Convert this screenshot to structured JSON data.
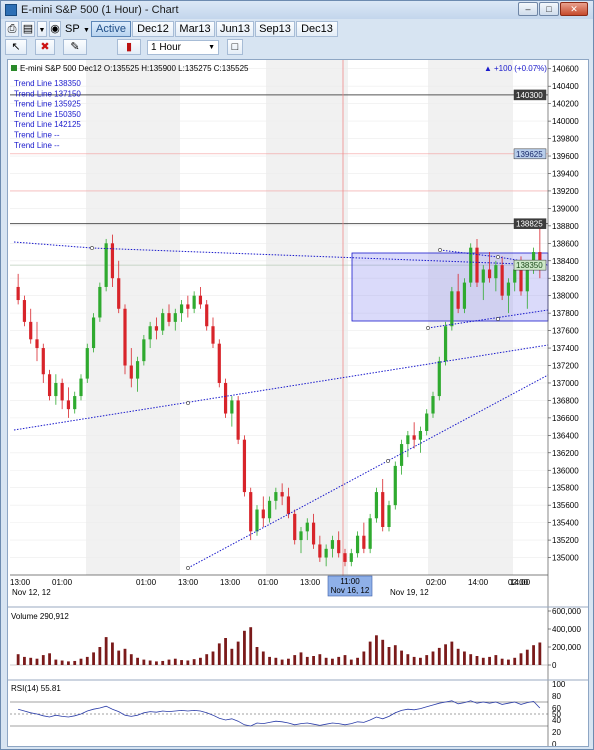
{
  "window": {
    "title": "E-mini S&P 500 (1 Hour) - Chart",
    "controls": [
      "–",
      "□",
      "✕"
    ]
  },
  "toolbar": {
    "symbol": "SP",
    "tabs": [
      "Active",
      "Dec12",
      "Mar13",
      "Jun13",
      "Sep13",
      "Dec13"
    ],
    "active_tab": "Active",
    "interval": "1 Hour"
  },
  "price_panel": {
    "header": "E-mini S&P 500 Dec12 O:135525 H:135900 L:135275 C:135525",
    "change": "+100 (+0.07%)",
    "legend": [
      "Trend Line 138350",
      "Trend Line 137150",
      "Trend Line 135925",
      "Trend Line 150350",
      "Trend Line 142125",
      "Trend Line --",
      "Trend Line --"
    ],
    "y_ticks": [
      "140600",
      "140400",
      "140200",
      "140000",
      "139800",
      "139600",
      "139400",
      "139200",
      "139000",
      "138800",
      "138600",
      "138400",
      "138200",
      "138000",
      "137800",
      "137600",
      "137400",
      "137200",
      "137000",
      "136800",
      "136600",
      "136400",
      "136200",
      "136000",
      "135800",
      "135600",
      "135400",
      "135200",
      "135000"
    ],
    "y_min": 134800,
    "y_max": 140700,
    "markers": [
      {
        "label": "140300",
        "value": 140300,
        "style": "dark"
      },
      {
        "label": "139625",
        "value": 139625,
        "style": "blue"
      },
      {
        "label": "138825",
        "value": 138825,
        "style": "dark"
      },
      {
        "label": "138350",
        "value": 138350,
        "style": "green"
      }
    ],
    "x_labels": [
      "13:00",
      "01:00",
      "13:00",
      "01:00",
      "13:00",
      "01:00",
      "13:00",
      "01:00",
      "11:00",
      "02:00",
      "14:00",
      "02:00",
      "14:00"
    ],
    "date_labels": [
      "Nov 12, 12",
      "Nov 19, 12"
    ],
    "crosshair": {
      "time": "11:00",
      "date": "Nov 16, 12"
    }
  },
  "volume_panel": {
    "label": "Volume 290,912",
    "y_ticks": [
      "600,000",
      "400,000",
      "200,000",
      "0"
    ],
    "y_max": 600000
  },
  "rsi_panel": {
    "label": "RSI(14)  55.81",
    "y_ticks": [
      "100",
      "80",
      "60",
      "50",
      "40",
      "20",
      "0"
    ]
  },
  "colors": {
    "up": "#2faa2f",
    "down": "#d8242a",
    "trend": "#1a1acc",
    "volume": "#7a1a1a",
    "rsi": "#2a3ca8"
  },
  "chart_data": {
    "type": "candlestick",
    "title": "E-mini S&P 500 Dec12",
    "ohlc": [
      [
        138100,
        138250,
        137900,
        137950
      ],
      [
        137950,
        138000,
        137650,
        137700
      ],
      [
        137700,
        137850,
        137450,
        137500
      ],
      [
        137500,
        137700,
        137250,
        137400
      ],
      [
        137400,
        137450,
        137000,
        137100
      ],
      [
        137100,
        137150,
        136800,
        136850
      ],
      [
        136850,
        137100,
        136750,
        137000
      ],
      [
        137000,
        137050,
        136700,
        136800
      ],
      [
        136800,
        136950,
        136600,
        136700
      ],
      [
        136700,
        136900,
        136650,
        136850
      ],
      [
        136850,
        137100,
        136800,
        137050
      ],
      [
        137050,
        137450,
        137000,
        137400
      ],
      [
        137400,
        137800,
        137350,
        137750
      ],
      [
        137750,
        138150,
        137700,
        138100
      ],
      [
        138100,
        138650,
        138050,
        138600
      ],
      [
        138600,
        138700,
        138100,
        138200
      ],
      [
        138200,
        138400,
        137800,
        137850
      ],
      [
        137850,
        137900,
        137100,
        137200
      ],
      [
        137200,
        137400,
        136950,
        137050
      ],
      [
        137050,
        137300,
        136900,
        137250
      ],
      [
        137250,
        137550,
        137200,
        137500
      ],
      [
        137500,
        137700,
        137400,
        137650
      ],
      [
        137650,
        137750,
        137500,
        137600
      ],
      [
        137600,
        137850,
        137550,
        137800
      ],
      [
        137800,
        137900,
        137650,
        137700
      ],
      [
        137700,
        137850,
        137600,
        137800
      ],
      [
        137800,
        137950,
        137700,
        137900
      ],
      [
        137900,
        138000,
        137750,
        137850
      ],
      [
        137850,
        138050,
        137800,
        138000
      ],
      [
        138000,
        138100,
        137850,
        137900
      ],
      [
        137900,
        137950,
        137600,
        137650
      ],
      [
        137650,
        137750,
        137400,
        137450
      ],
      [
        137450,
        137500,
        136950,
        137000
      ],
      [
        137000,
        137050,
        136600,
        136650
      ],
      [
        136650,
        136850,
        136500,
        136800
      ],
      [
        136800,
        136850,
        136300,
        136350
      ],
      [
        136350,
        136400,
        135700,
        135750
      ],
      [
        135750,
        135800,
        135200,
        135300
      ],
      [
        135300,
        135600,
        135250,
        135550
      ],
      [
        135550,
        135700,
        135350,
        135450
      ],
      [
        135450,
        135700,
        135400,
        135650
      ],
      [
        135650,
        135800,
        135550,
        135750
      ],
      [
        135750,
        135850,
        135600,
        135700
      ],
      [
        135700,
        135800,
        135450,
        135500
      ],
      [
        135500,
        135550,
        135150,
        135200
      ],
      [
        135200,
        135350,
        135050,
        135300
      ],
      [
        135300,
        135450,
        135200,
        135400
      ],
      [
        135400,
        135500,
        135100,
        135150
      ],
      [
        135150,
        135250,
        134950,
        135000
      ],
      [
        135000,
        135150,
        134900,
        135100
      ],
      [
        135100,
        135250,
        135000,
        135200
      ],
      [
        135200,
        135300,
        135000,
        135050
      ],
      [
        135050,
        135100,
        134900,
        134950
      ],
      [
        134950,
        135100,
        134900,
        135050
      ],
      [
        135050,
        135300,
        135000,
        135250
      ],
      [
        135250,
        135400,
        135050,
        135100
      ],
      [
        135100,
        135500,
        135050,
        135450
      ],
      [
        135450,
        135800,
        135400,
        135750
      ],
      [
        135750,
        135900,
        135300,
        135350
      ],
      [
        135350,
        135650,
        135300,
        135600
      ],
      [
        135600,
        136100,
        135550,
        136050
      ],
      [
        136050,
        136350,
        135950,
        136300
      ],
      [
        136300,
        136450,
        136150,
        136400
      ],
      [
        136400,
        136550,
        136250,
        136350
      ],
      [
        136350,
        136500,
        136200,
        136450
      ],
      [
        136450,
        136700,
        136400,
        136650
      ],
      [
        136650,
        136900,
        136600,
        136850
      ],
      [
        136850,
        137300,
        136800,
        137250
      ],
      [
        137250,
        137700,
        137200,
        137650
      ],
      [
        137650,
        138100,
        137600,
        138050
      ],
      [
        138050,
        138250,
        137800,
        137850
      ],
      [
        137850,
        138200,
        137800,
        138150
      ],
      [
        138150,
        138600,
        138100,
        138550
      ],
      [
        138550,
        138650,
        138100,
        138150
      ],
      [
        138150,
        138350,
        137950,
        138300
      ],
      [
        138300,
        138500,
        138150,
        138200
      ],
      [
        138200,
        138400,
        138050,
        138350
      ],
      [
        138350,
        138450,
        137950,
        138000
      ],
      [
        138000,
        138200,
        137800,
        138150
      ],
      [
        138150,
        138350,
        138050,
        138300
      ],
      [
        138300,
        138450,
        138000,
        138050
      ],
      [
        138050,
        138400,
        137850,
        138350
      ],
      [
        138350,
        138550,
        138250,
        138500
      ],
      [
        138500,
        138850,
        138200,
        138350
      ]
    ],
    "volume": [
      120,
      90,
      80,
      70,
      110,
      130,
      60,
      50,
      40,
      45,
      70,
      90,
      140,
      200,
      310,
      250,
      160,
      180,
      120,
      80,
      60,
      50,
      40,
      45,
      60,
      70,
      55,
      50,
      65,
      80,
      120,
      150,
      240,
      300,
      180,
      260,
      380,
      420,
      200,
      150,
      90,
      80,
      60,
      70,
      110,
      140,
      90,
      100,
      120,
      80,
      70,
      90,
      110,
      60,
      80,
      150,
      260,
      330,
      280,
      200,
      220,
      160,
      120,
      90,
      80,
      110,
      150,
      190,
      230,
      260,
      180,
      150,
      120,
      100,
      80,
      90,
      110,
      70,
      60,
      80,
      130,
      170,
      220,
      250
    ],
    "rsi": [
      58,
      55,
      52,
      50,
      47,
      45,
      48,
      46,
      45,
      47,
      50,
      55,
      58,
      60,
      63,
      58,
      54,
      48,
      46,
      48,
      52,
      54,
      53,
      55,
      54,
      55,
      56,
      55,
      56,
      55,
      52,
      48,
      43,
      40,
      42,
      38,
      32,
      30,
      35,
      34,
      36,
      38,
      37,
      35,
      32,
      34,
      35,
      33,
      31,
      33,
      35,
      34,
      32,
      34,
      37,
      36,
      40,
      45,
      42,
      46,
      52,
      56,
      58,
      57,
      59,
      62,
      65,
      68,
      70,
      72,
      67,
      69,
      72,
      68,
      70,
      68,
      70,
      66,
      68,
      70,
      66,
      69,
      71,
      60
    ]
  }
}
